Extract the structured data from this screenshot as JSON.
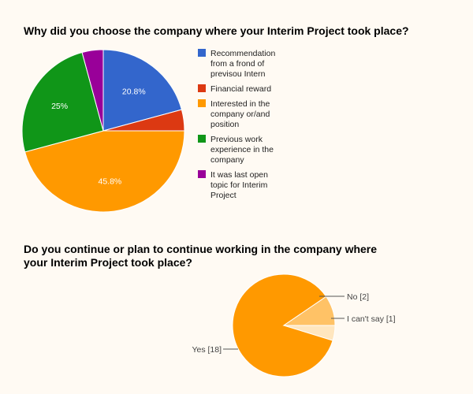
{
  "chart_data": [
    {
      "type": "pie",
      "title": "Why did you choose the company where your Interim Project took place?",
      "slices": [
        {
          "label": "Recommendation from a frond of previsou Intern",
          "value": 20.8,
          "color": "#3366cc",
          "display": "20.8%"
        },
        {
          "label": "Financial reward",
          "value": 4.2,
          "color": "#dc3912",
          "display": ""
        },
        {
          "label": "Interested in the company or/and position",
          "value": 45.8,
          "color": "#ff9900",
          "display": "45.8%"
        },
        {
          "label": "Previous work experience in the company",
          "value": 25,
          "color": "#109618",
          "display": "25%"
        },
        {
          "label": "It was last open topic for Interim Project",
          "value": 4.2,
          "color": "#990099",
          "display": ""
        }
      ],
      "legend_position": "right"
    },
    {
      "type": "pie",
      "title": "Do you continue or plan to continue working in the company where your Interim Project took place?",
      "slices": [
        {
          "label": "Yes [18]",
          "value": 18,
          "color": "#ff9900"
        },
        {
          "label": "No [2]",
          "value": 2,
          "color": "#ffc266"
        },
        {
          "label": "I can't say [1]",
          "value": 1,
          "color": "#ffe6bf"
        }
      ],
      "legend_position": "none"
    }
  ]
}
